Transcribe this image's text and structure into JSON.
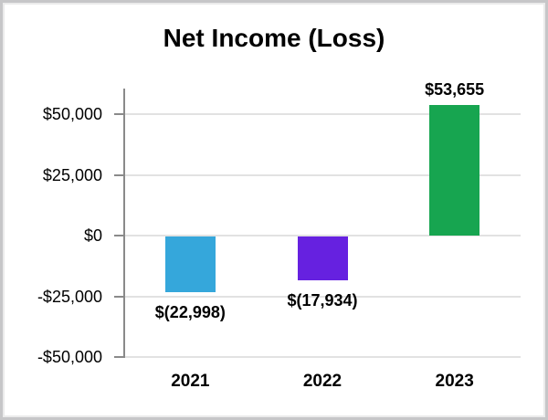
{
  "chart_data": {
    "type": "bar",
    "title": "Net Income (Loss)",
    "categories": [
      "2021",
      "2022",
      "2023"
    ],
    "values": [
      -22998,
      -17934,
      53655
    ],
    "data_labels": [
      "$(22,998)",
      "$(17,934)",
      "$53,655"
    ],
    "bar_colors": [
      "#35A7DB",
      "#6621E0",
      "#17A550"
    ],
    "y_ticks": [
      {
        "value": 50000,
        "label": "$50,000"
      },
      {
        "value": 25000,
        "label": "$25,000"
      },
      {
        "value": 0,
        "label": "$0"
      },
      {
        "value": -25000,
        "label": "-$25,000"
      },
      {
        "value": -50000,
        "label": "-$50,000"
      }
    ],
    "ylim": [
      -50000,
      60000
    ],
    "xlabel": "",
    "ylabel": "",
    "grid": true,
    "legend": "none",
    "colors": {
      "axis": "#8A8A8A",
      "gridline": "#E2E2E2",
      "text": "#000000",
      "background": "#FFFFFF",
      "frame_border": "#C6C6C8"
    }
  }
}
